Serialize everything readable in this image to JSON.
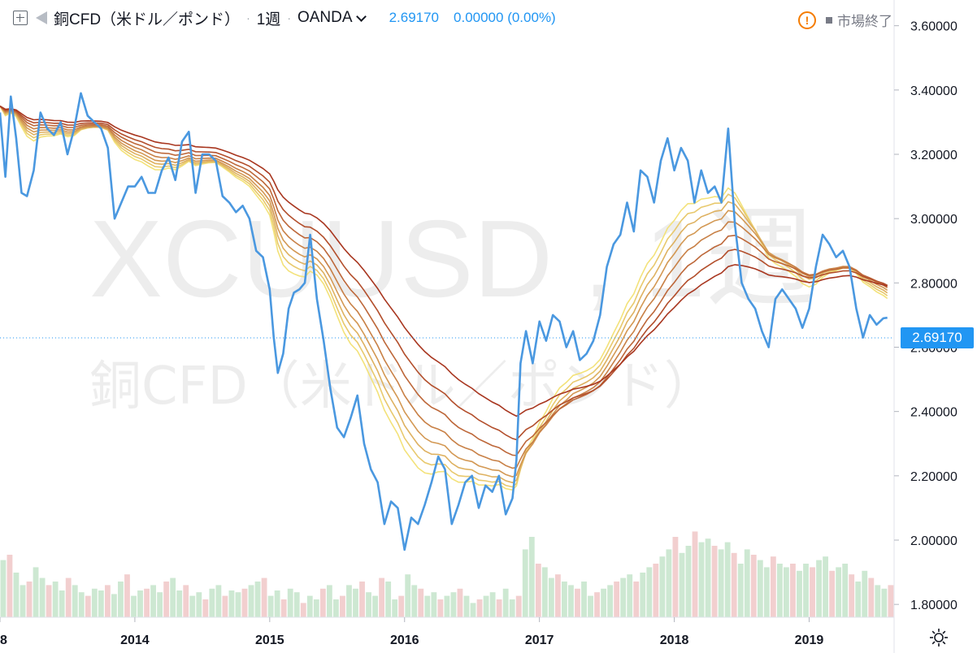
{
  "header": {
    "symbol": "銅CFD（米ドル／ポンド）",
    "interval": "1週",
    "broker": "OANDA",
    "last": "2.69170",
    "change": "0.00000 (0.00%)",
    "market_status": "市場終了"
  },
  "watermark": {
    "ticker": "XCUUSD , 1週",
    "name": "銅CFD（米ドル／ポンド）"
  },
  "price_tag": "2.69170",
  "colors": {
    "price": "#4a98e0",
    "accent": "#2196f3",
    "ribbon_fast": "#f3e27a",
    "ribbon_slow": "#a8361f",
    "vol_up": "#cde8d2",
    "vol_down": "#f2cfcf"
  },
  "chart_data": {
    "type": "line",
    "y_axis": {
      "ticks": [
        "3.60000",
        "3.40000",
        "3.20000",
        "3.00000",
        "2.80000",
        "2.60000",
        "2.40000",
        "2.20000",
        "2.00000",
        "1.80000"
      ],
      "range": [
        1.76,
        3.68
      ]
    },
    "x_axis": {
      "ticks": [
        "8",
        "2014",
        "2015",
        "2016",
        "2017",
        "2018",
        "2019"
      ]
    },
    "x_range": [
      2013.0,
      2019.63
    ],
    "last_price": 2.6917,
    "series": [
      {
        "values_t": [
          2013.0,
          2013.04,
          2013.08,
          2013.12,
          2013.16,
          2013.2,
          2013.25,
          2013.3,
          2013.35,
          2013.4,
          2013.45,
          2013.5,
          2013.55,
          2013.6,
          2013.65,
          2013.7,
          2013.75,
          2013.8,
          2013.85,
          2013.9,
          2013.95,
          2014.0,
          2014.05,
          2014.1,
          2014.15,
          2014.2,
          2014.25,
          2014.3,
          2014.35,
          2014.4,
          2014.45,
          2014.5,
          2014.55,
          2014.6,
          2014.65,
          2014.7,
          2014.75,
          2014.8,
          2014.85,
          2014.9,
          2014.95,
          2015.0,
          2015.03,
          2015.06,
          2015.1,
          2015.14,
          2015.18,
          2015.22,
          2015.26,
          2015.3,
          2015.35,
          2015.4,
          2015.45,
          2015.5,
          2015.55,
          2015.6,
          2015.65,
          2015.7,
          2015.75,
          2015.8,
          2015.85,
          2015.9,
          2015.95,
          2016.0,
          2016.05,
          2016.1,
          2016.15,
          2016.2,
          2016.25,
          2016.3,
          2016.35,
          2016.4,
          2016.45,
          2016.5,
          2016.55,
          2016.6,
          2016.65,
          2016.7,
          2016.75,
          2016.8,
          2016.83,
          2016.86,
          2016.9,
          2016.95,
          2017.0,
          2017.05,
          2017.1,
          2017.15,
          2017.2,
          2017.25,
          2017.3,
          2017.35,
          2017.4,
          2017.45,
          2017.5,
          2017.55,
          2017.6,
          2017.65,
          2017.7,
          2017.75,
          2017.8,
          2017.85,
          2017.9,
          2017.95,
          2018.0,
          2018.05,
          2018.1,
          2018.15,
          2018.2,
          2018.25,
          2018.3,
          2018.35,
          2018.4,
          2018.45,
          2018.5,
          2018.55,
          2018.6,
          2018.65,
          2018.7,
          2018.75,
          2018.8,
          2018.85,
          2018.9,
          2018.95,
          2019.0,
          2019.05,
          2019.1,
          2019.15,
          2019.2,
          2019.25,
          2019.3,
          2019.35,
          2019.4,
          2019.45,
          2019.5,
          2019.55,
          2019.58
        ],
        "values": [
          3.33,
          3.13,
          3.38,
          3.25,
          3.08,
          3.07,
          3.15,
          3.33,
          3.28,
          3.26,
          3.3,
          3.2,
          3.28,
          3.39,
          3.32,
          3.3,
          3.28,
          3.22,
          3.0,
          3.05,
          3.1,
          3.1,
          3.13,
          3.08,
          3.08,
          3.15,
          3.19,
          3.12,
          3.24,
          3.27,
          3.08,
          3.2,
          3.2,
          3.18,
          3.07,
          3.05,
          3.02,
          3.04,
          3.0,
          2.9,
          2.88,
          2.78,
          2.63,
          2.52,
          2.58,
          2.72,
          2.77,
          2.78,
          2.8,
          2.95,
          2.75,
          2.62,
          2.47,
          2.35,
          2.32,
          2.38,
          2.45,
          2.3,
          2.22,
          2.18,
          2.05,
          2.12,
          2.1,
          1.97,
          2.07,
          2.05,
          2.11,
          2.18,
          2.26,
          2.22,
          2.05,
          2.11,
          2.18,
          2.2,
          2.1,
          2.17,
          2.15,
          2.2,
          2.08,
          2.13,
          2.25,
          2.55,
          2.65,
          2.55,
          2.68,
          2.62,
          2.7,
          2.68,
          2.6,
          2.65,
          2.56,
          2.58,
          2.62,
          2.7,
          2.85,
          2.92,
          2.95,
          3.05,
          2.96,
          3.15,
          3.13,
          3.05,
          3.18,
          3.25,
          3.15,
          3.22,
          3.18,
          3.05,
          3.15,
          3.08,
          3.1,
          3.05,
          3.28,
          2.98,
          2.8,
          2.75,
          2.72,
          2.65,
          2.6,
          2.75,
          2.78,
          2.75,
          2.72,
          2.66,
          2.72,
          2.85,
          2.95,
          2.92,
          2.88,
          2.9,
          2.85,
          2.72,
          2.63,
          2.7,
          2.67,
          2.69,
          2.6917
        ]
      }
    ],
    "ribbon": [
      0.85,
      0.75,
      0.66,
      0.58,
      0.5,
      0.42,
      0.35,
      0.28
    ],
    "volume": [
      0.32,
      0.35,
      0.25,
      0.18,
      0.2,
      0.28,
      0.22,
      0.18,
      0.2,
      0.15,
      0.22,
      0.18,
      0.14,
      0.12,
      0.16,
      0.15,
      0.18,
      0.13,
      0.2,
      0.24,
      0.12,
      0.15,
      0.16,
      0.18,
      0.14,
      0.2,
      0.22,
      0.15,
      0.18,
      0.12,
      0.14,
      0.1,
      0.16,
      0.18,
      0.12,
      0.15,
      0.14,
      0.16,
      0.18,
      0.2,
      0.22,
      0.12,
      0.15,
      0.1,
      0.16,
      0.14,
      0.08,
      0.12,
      0.1,
      0.16,
      0.18,
      0.1,
      0.12,
      0.18,
      0.16,
      0.2,
      0.14,
      0.12,
      0.22,
      0.2,
      0.1,
      0.12,
      0.24,
      0.18,
      0.16,
      0.12,
      0.14,
      0.1,
      0.12,
      0.14,
      0.16,
      0.12,
      0.08,
      0.1,
      0.12,
      0.14,
      0.1,
      0.16,
      0.1,
      0.12,
      0.38,
      0.45,
      0.3,
      0.28,
      0.22,
      0.24,
      0.2,
      0.18,
      0.16,
      0.2,
      0.12,
      0.14,
      0.16,
      0.18,
      0.2,
      0.22,
      0.24,
      0.2,
      0.25,
      0.28,
      0.3,
      0.34,
      0.38,
      0.45,
      0.36,
      0.4,
      0.48,
      0.42,
      0.44,
      0.4,
      0.38,
      0.42,
      0.36,
      0.3,
      0.38,
      0.35,
      0.32,
      0.28,
      0.34,
      0.3,
      0.28,
      0.3,
      0.26,
      0.3,
      0.28,
      0.32,
      0.34,
      0.26,
      0.28,
      0.3,
      0.24,
      0.2,
      0.26,
      0.22,
      0.18,
      0.16,
      0.18
    ]
  }
}
